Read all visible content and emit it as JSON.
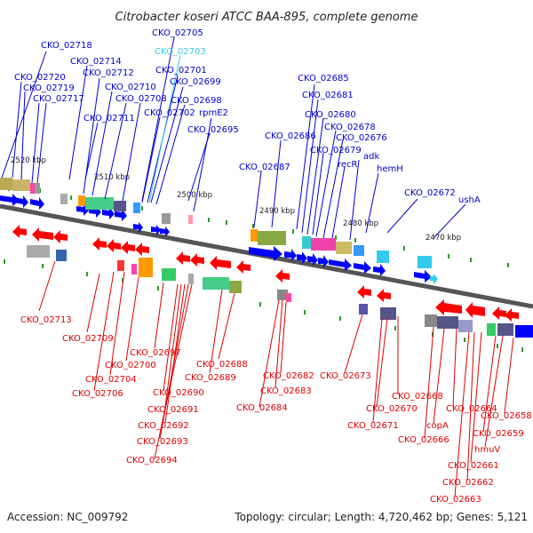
{
  "title": "Citrobacter koseri ATCC BAA-895, complete genome",
  "footer": {
    "accession": "Accession: NC_009792",
    "summary": "Topology: circular; Length: 4,720,462 bp; Genes: 5,121"
  },
  "ticks": [
    "2520 kbp",
    "2510 kbp",
    "2500 kbp",
    "2490 kbp",
    "2480 kbp",
    "2470 kbp"
  ],
  "colors": {
    "forward": "#0000ff",
    "reverse": "#ff0000",
    "highlight": "#33ccee",
    "backbone": "#555555"
  },
  "top_labels": [
    "CKO_02718",
    "CKO_02705",
    "CKO_02703",
    "CKO_02720",
    "CKO_02714",
    "CKO_02712",
    "CKO_02701",
    "CKO_02719",
    "CKO_02710",
    "CKO_02699",
    "CKO_02717",
    "CKO_02708",
    "CKO_02698",
    "CKO_02711",
    "CKO_02702",
    "rpmE2",
    "CKO_02695",
    "CKO_02685",
    "CKO_02681",
    "CKO_02680",
    "CKO_02678",
    "CKO_02686",
    "CKO_02676",
    "CKO_02679",
    "CKO_02687",
    "recR",
    "adk",
    "hemH",
    "CKO_02672",
    "ushA"
  ],
  "bottom_labels": [
    "CKO_02713",
    "CKO_02709",
    "CKO_02697",
    "CKO_02700",
    "CKO_02688",
    "CKO_02704",
    "CKO_02689",
    "CKO_02682",
    "CKO_02673",
    "CKO_02706",
    "CKO_02690",
    "CKO_02683",
    "CKO_02668",
    "CKO_02670",
    "CKO_02664",
    "CKO_02691",
    "CKO_02684",
    "CKO_02658",
    "CKO_02671",
    "copA",
    "CKO_02692",
    "CKO_02666",
    "CKO_02659",
    "CKO_02693",
    "hmuV",
    "CKO_02694",
    "CKO_02661",
    "CKO_02662",
    "CKO_02663"
  ]
}
